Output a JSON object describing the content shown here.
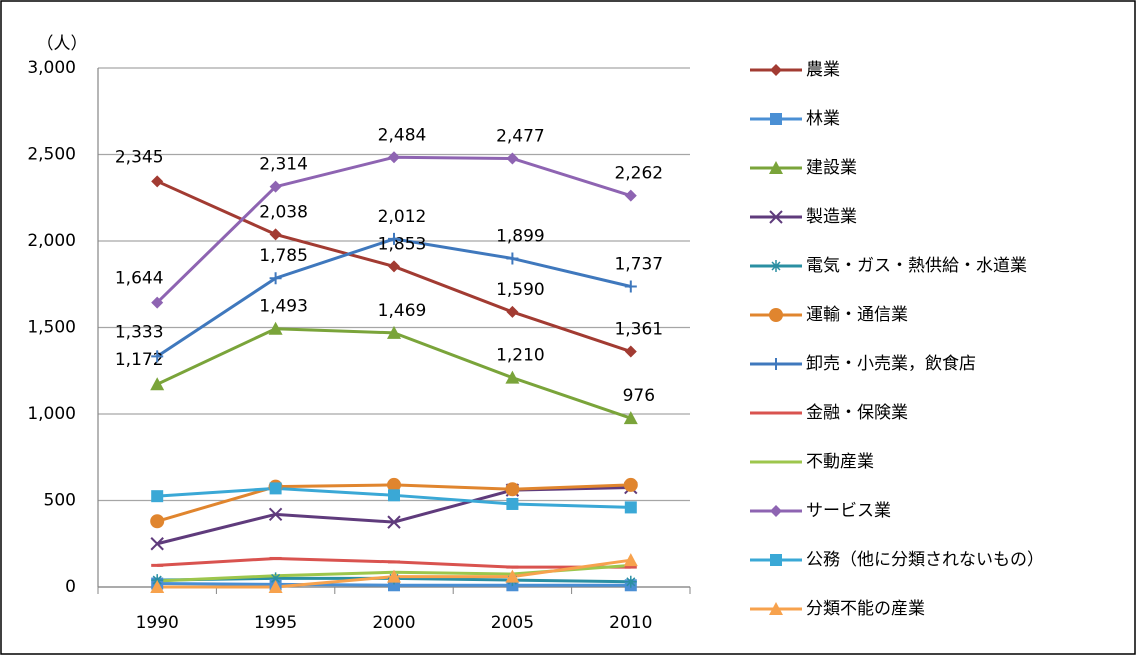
{
  "chart_data": {
    "type": "line",
    "y_unit_label": "（人）",
    "categories": [
      "1990",
      "1995",
      "2000",
      "2005",
      "2010"
    ],
    "ylim": [
      0,
      3000
    ],
    "yticks": [
      0,
      500,
      {
        "value": 1000,
        "label": "1,000"
      },
      {
        "value": 1500,
        "label": "1,500"
      },
      {
        "value": 2000,
        "label": "2,000"
      },
      {
        "value": 2500,
        "label": "2,500"
      },
      {
        "value": 3000,
        "label": "3,000"
      }
    ],
    "grid": true,
    "legend": "right",
    "series": [
      {
        "name": "農業",
        "color": "#a23b32",
        "marker": "diamond",
        "values": [
          2345,
          2038,
          1853,
          1590,
          1361
        ],
        "value_labels": [
          "2,345",
          "2,038",
          "1,853",
          "1,590",
          "1,361"
        ]
      },
      {
        "name": "林業",
        "color": "#4a8fd4",
        "marker": "square",
        "values": [
          20,
          15,
          10,
          10,
          10
        ]
      },
      {
        "name": "建設業",
        "color": "#7aa43a",
        "marker": "triangle",
        "values": [
          1172,
          1493,
          1469,
          1210,
          976
        ],
        "value_labels": [
          "1,172",
          "1,493",
          "1,469",
          "1,210",
          "976"
        ]
      },
      {
        "name": "製造業",
        "color": "#5f3b7c",
        "marker": "x",
        "values": [
          250,
          420,
          375,
          560,
          575
        ]
      },
      {
        "name": "電気・ガス・熱供給・水道業",
        "color": "#2a8fa2",
        "marker": "asterisk",
        "values": [
          40,
          50,
          50,
          40,
          30
        ]
      },
      {
        "name": "運輸・通信業",
        "color": "#e0852e",
        "marker": "circle",
        "values": [
          380,
          580,
          590,
          565,
          590
        ]
      },
      {
        "name": "卸売・小売業，飲食店",
        "color": "#3f78bd",
        "marker": "plus",
        "values": [
          1333,
          1785,
          2012,
          1899,
          1737
        ],
        "value_labels": [
          "1,333",
          "1,785",
          "2,012",
          "1,899",
          "1,737"
        ]
      },
      {
        "name": "金融・保険業",
        "color": "#d9534f",
        "marker": "dash",
        "values": [
          125,
          165,
          145,
          115,
          115
        ]
      },
      {
        "name": "不動産業",
        "color": "#9dc64c",
        "marker": "none",
        "values": [
          35,
          65,
          85,
          75,
          125
        ]
      },
      {
        "name": "サービス業",
        "color": "#8e64b2",
        "marker": "diamond",
        "values": [
          1644,
          2314,
          2484,
          2477,
          2262
        ],
        "value_labels": [
          "1,644",
          "2,314",
          "2,484",
          "2,477",
          "2,262"
        ]
      },
      {
        "name": "公務（他に分類されないもの）",
        "color": "#3aa8d6",
        "marker": "square",
        "values": [
          525,
          570,
          530,
          480,
          460
        ]
      },
      {
        "name": "分類不能の産業",
        "color": "#f7a24d",
        "marker": "triangle",
        "values": [
          0,
          0,
          60,
          60,
          155
        ]
      }
    ]
  }
}
